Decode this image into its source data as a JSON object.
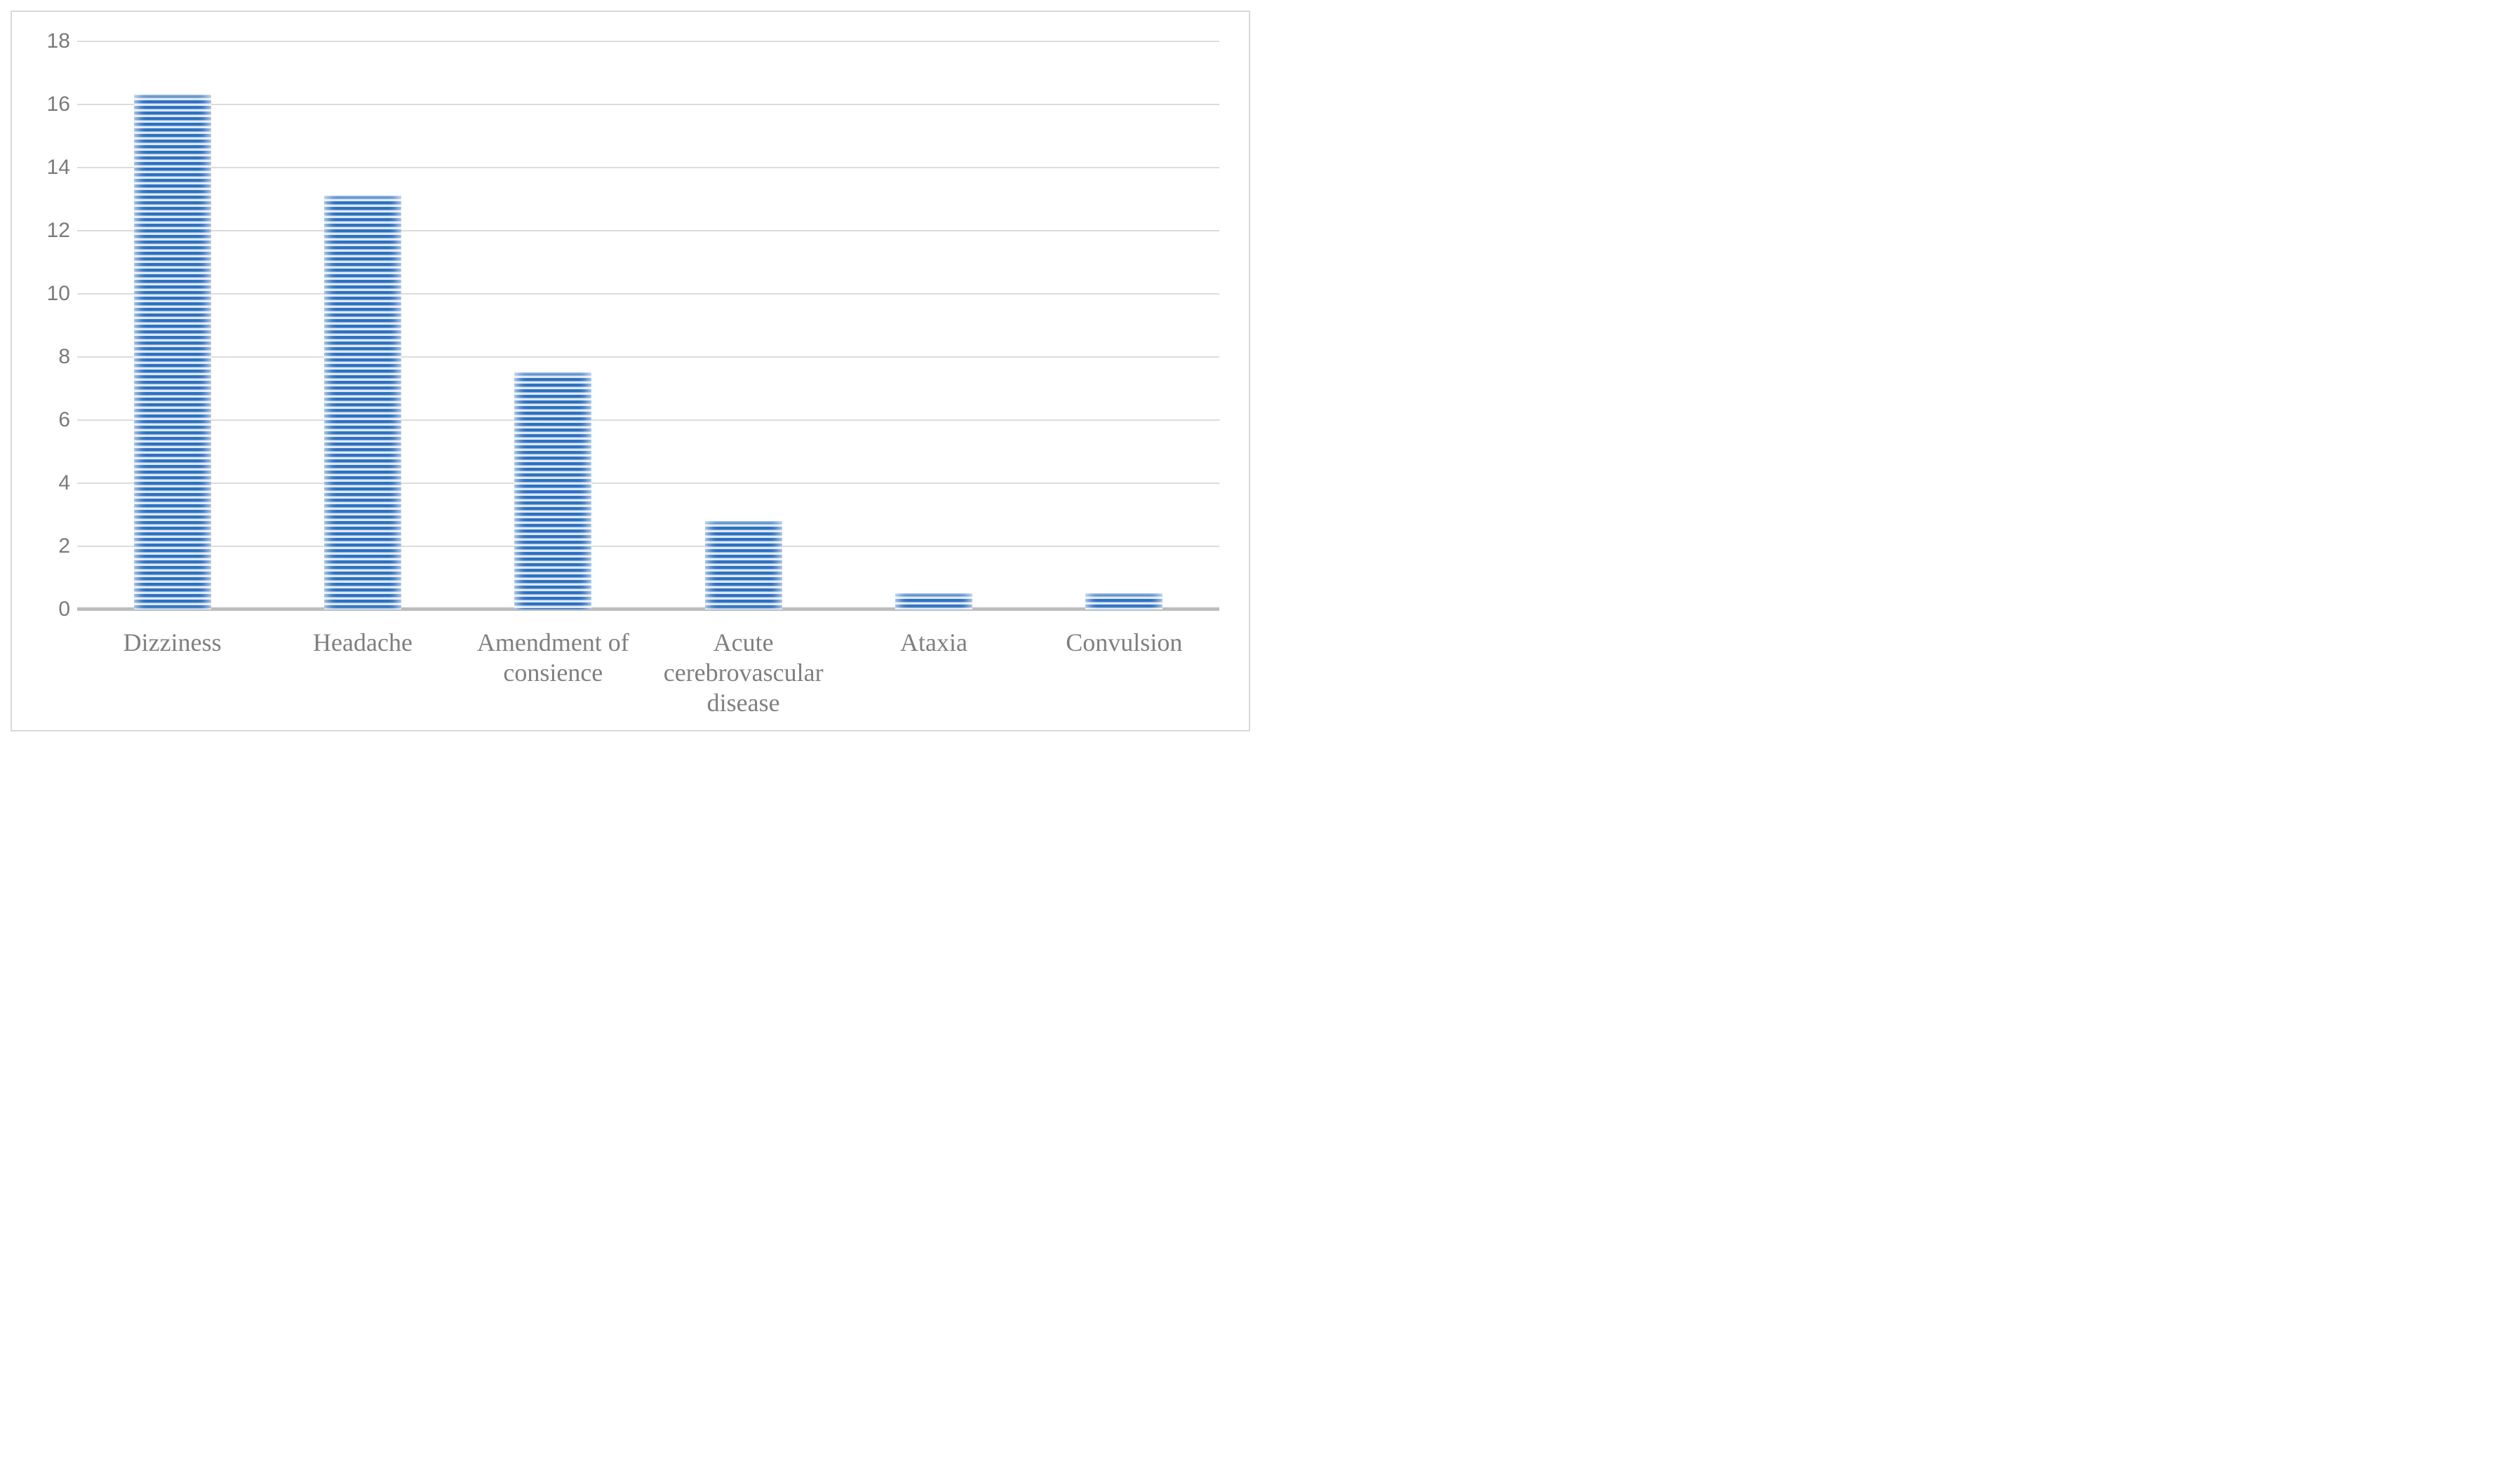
{
  "chart_data": {
    "type": "bar",
    "title": "",
    "xlabel": "",
    "ylabel": "",
    "categories": [
      "Dizziness",
      "Headache",
      "Amendment of\nconsience",
      "Acute\ncerebrovascular\ndisease",
      "Ataxia",
      "Convulsion"
    ],
    "values": [
      16.3,
      13.1,
      7.5,
      2.8,
      0.5,
      0.5
    ],
    "ylim": [
      0,
      18
    ],
    "ytick_step": 2,
    "yticks": [
      18,
      16,
      14,
      12,
      10,
      8,
      6,
      4,
      2,
      0
    ],
    "grid": true,
    "legend": false,
    "bar_pattern": "horizontal-stripes",
    "colors": {
      "bar_stripe_dark": "#2e71bf",
      "bar_stripe_light": "#dde8f6",
      "gridline": "#dcdcdc",
      "axis_line": "#bdbdbd",
      "frame_border": "#d9d9d9",
      "tick_label": "#7a7a7a",
      "category_label": "#7f7f7f",
      "background": "#ffffff"
    }
  }
}
